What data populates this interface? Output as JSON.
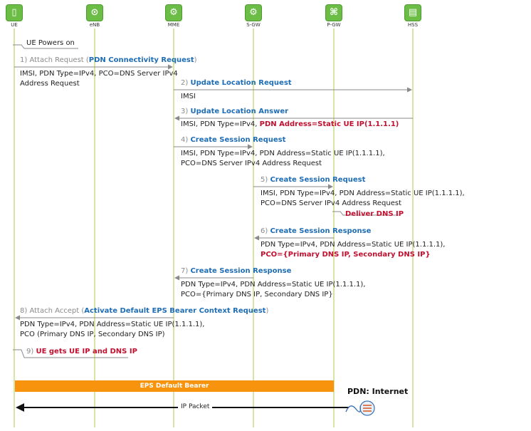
{
  "entities": [
    {
      "id": "ue",
      "label": "UE",
      "icon": "phone-icon",
      "glyph": "▯"
    },
    {
      "id": "enb",
      "label": "eNB",
      "icon": "antenna-icon",
      "glyph": "⊙"
    },
    {
      "id": "mme",
      "label": "MME",
      "icon": "gear-icon",
      "glyph": "⚙"
    },
    {
      "id": "sgw",
      "label": "S-GW",
      "icon": "gear-icon",
      "glyph": "⚙"
    },
    {
      "id": "pgw",
      "label": "P-GW",
      "icon": "network-icon",
      "glyph": "⌘"
    },
    {
      "id": "hss",
      "label": "HSS",
      "icon": "database-icon",
      "glyph": "▤"
    }
  ],
  "steps": {
    "powers_on": "UE Powers on",
    "s1_num": "1) Attach Request (",
    "s1_name": "PDN Connectivity Request",
    "s1_close": ")",
    "s1_l1": "IMSI, PDN Type=IPv4, PCO=DNS Server IPv4",
    "s1_l2": "Address Request",
    "s2_num": "2)",
    "s2_name": "Update Location Request",
    "s2_l1": "IMSI",
    "s3_num": "3)",
    "s3_name": "Update Location Answer",
    "s3_l1": "IMSI, PDN Type=IPv4,",
    "s3_red": "PDN Address=Static UE IP(1.1.1.1)",
    "s4_num": "4)",
    "s4_name": "Create Session Request",
    "s4_l1": "IMSI, PDN Type=IPv4, PDN Address=Static UE IP(1.1.1.1),",
    "s4_l2": "PCO=DNS Server IPv4 Address Request",
    "s5_num": "5)",
    "s5_name": "Create Session Request",
    "s5_l1": "IMSI, PDN Type=IPv4, PDN Address=Static UE IP(1.1.1.1),",
    "s5_l2": "PCO=DNS Server IPv4 Address Request",
    "deliver": "Deliver DNS IP",
    "s6_num": "6)",
    "s6_name": "Create Session Response",
    "s6_l1": "PDN Type=IPv4, PDN Address=Static UE IP(1.1.1.1),",
    "s6_red": "PCO={Primary DNS IP, Secondary DNS IP}",
    "s7_num": "7)",
    "s7_name": "Create Session Response",
    "s7_l1": "PDN Type=IPv4, PDN Address=Static UE IP(1.1.1.1),",
    "s7_l2": "PCO={Primary DNS IP, Secondary DNS IP}",
    "s8_num": "8) Attach Accept (",
    "s8_name": "Activate Default EPS Bearer Context Request",
    "s8_close": ")",
    "s8_l1": "PDN Type=IPv4, PDN Address=Static UE IP(1.1.1.1),",
    "s8_l2": "PCO (Primary DNS IP, Secondary DNS IP)",
    "s9_num": "9)",
    "s9_red": "UE gets UE IP and DNS IP"
  },
  "bearer": "EPS Default Bearer",
  "pdn": "PDN: Internet",
  "ip_packet": "IP Packet",
  "colors": {
    "blue": "#1e6db5",
    "red": "#c0102f",
    "orange": "#f7930d",
    "green": "#6bbd45",
    "lifeline": "#c9dc86"
  }
}
